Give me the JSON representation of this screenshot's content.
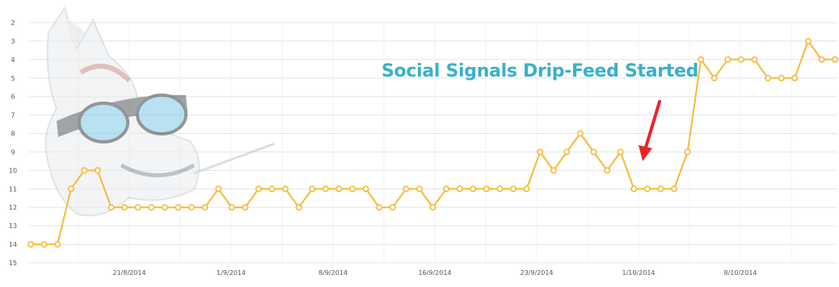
{
  "chart_data": {
    "type": "line",
    "title": "",
    "xlabel": "",
    "ylabel": "",
    "y_axis_inverted": true,
    "ylim": [
      2,
      15
    ],
    "y_ticks": [
      "2",
      "3",
      "4",
      "5",
      "6",
      "7",
      "8",
      "9",
      "10",
      "11",
      "12",
      "13",
      "14",
      "15"
    ],
    "x_tick_labels": [
      "21/8/2014",
      "1/9/2014",
      "8/9/2014",
      "16/9/2014",
      "23/9/2014",
      "1/10/2014",
      "8/10/2014"
    ],
    "grid": true,
    "line_color": "#f5b93a",
    "annotation": {
      "text": "Social Signals Drip-Feed Started",
      "color": "#3bb0c9",
      "arrow_color": "#e8262a"
    },
    "series": [
      {
        "values": [
          14,
          14,
          14,
          11,
          10,
          10,
          12,
          12,
          12,
          12,
          12,
          12,
          12,
          12,
          11,
          12,
          12,
          11,
          11,
          11,
          12,
          11,
          11,
          11,
          11,
          11,
          12,
          12,
          11,
          11,
          12,
          11,
          11,
          11,
          11,
          11,
          11,
          11,
          9,
          10,
          9,
          8,
          9,
          10,
          9,
          11,
          11,
          11,
          11,
          9,
          4,
          5,
          4,
          4,
          4,
          5,
          5,
          5,
          3,
          4,
          4
        ]
      }
    ]
  }
}
